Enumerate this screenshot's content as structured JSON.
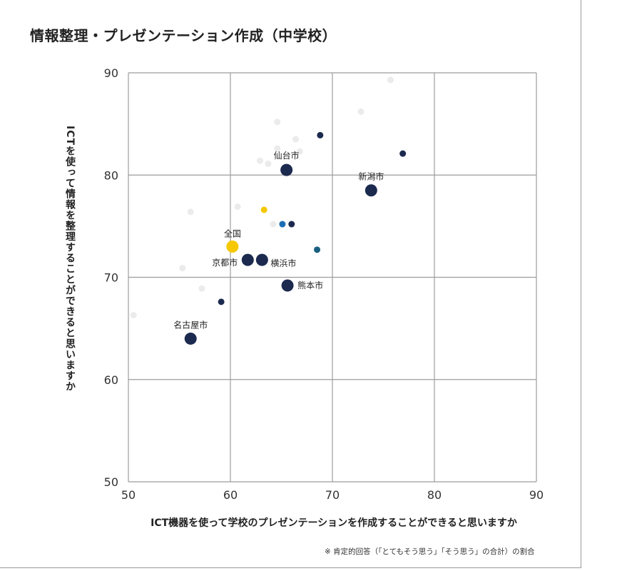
{
  "chart_data": {
    "type": "scatter",
    "title": "情報整理・プレゼンテーション作成（中学校）",
    "xlabel": "ICT機器を使って学校のプレゼンテーションを作成することができると思いますか",
    "ylabel": "ICTを使って情報を整理することができると思いますか",
    "note": "※ 肯定的回答（「とてもそう思う」「そう思う」の合計）の割合",
    "xlim": [
      50,
      90
    ],
    "ylim": [
      50,
      90
    ],
    "xticks": [
      50,
      60,
      70,
      80,
      90
    ],
    "yticks": [
      50,
      60,
      70,
      80,
      90
    ],
    "grid": true,
    "colors": {
      "navy": "#1b2a4e",
      "yellow": "#f5c800",
      "blue": "#1a6fb5",
      "teal": "#1a5f80",
      "gray": "#ebebeb"
    },
    "points": [
      {
        "x": 75.7,
        "y": 89.3,
        "color": "gray",
        "large": false
      },
      {
        "x": 72.8,
        "y": 86.2,
        "color": "gray",
        "large": false
      },
      {
        "x": 64.6,
        "y": 85.2,
        "color": "gray",
        "large": false
      },
      {
        "x": 66.4,
        "y": 83.5,
        "color": "gray",
        "large": false
      },
      {
        "x": 64.6,
        "y": 82.6,
        "color": "gray",
        "large": false
      },
      {
        "x": 66.8,
        "y": 82.3,
        "color": "gray",
        "large": false
      },
      {
        "x": 62.9,
        "y": 81.4,
        "color": "gray",
        "large": false
      },
      {
        "x": 63.7,
        "y": 81.1,
        "color": "gray",
        "large": false
      },
      {
        "x": 56.1,
        "y": 76.4,
        "color": "gray",
        "large": false
      },
      {
        "x": 60.7,
        "y": 76.9,
        "color": "gray",
        "large": false
      },
      {
        "x": 64.2,
        "y": 75.2,
        "color": "gray",
        "large": false
      },
      {
        "x": 55.3,
        "y": 70.9,
        "color": "gray",
        "large": false
      },
      {
        "x": 57.2,
        "y": 68.9,
        "color": "gray",
        "large": false
      },
      {
        "x": 50.5,
        "y": 66.3,
        "color": "gray",
        "large": false
      },
      {
        "x": 68.8,
        "y": 83.9,
        "color": "navy",
        "large": false
      },
      {
        "x": 76.9,
        "y": 82.1,
        "color": "navy",
        "large": false
      },
      {
        "x": 66.0,
        "y": 75.2,
        "color": "navy",
        "large": false
      },
      {
        "x": 59.1,
        "y": 67.6,
        "color": "navy",
        "large": false
      },
      {
        "x": 63.3,
        "y": 76.6,
        "color": "yellow",
        "large": false
      },
      {
        "x": 65.1,
        "y": 75.2,
        "color": "blue",
        "large": false
      },
      {
        "x": 68.5,
        "y": 72.7,
        "color": "teal",
        "large": false
      },
      {
        "x": 65.5,
        "y": 80.5,
        "color": "navy",
        "large": true,
        "label": "仙台市"
      },
      {
        "x": 73.8,
        "y": 78.5,
        "color": "navy",
        "large": true,
        "label": "新潟市"
      },
      {
        "x": 60.2,
        "y": 73.0,
        "color": "yellow",
        "large": true,
        "label": "全国"
      },
      {
        "x": 61.7,
        "y": 71.7,
        "color": "navy",
        "large": true,
        "label": "京都市"
      },
      {
        "x": 63.1,
        "y": 71.7,
        "color": "navy",
        "large": true,
        "label": "横浜市"
      },
      {
        "x": 65.6,
        "y": 69.2,
        "color": "navy",
        "large": true,
        "label": "熊本市"
      },
      {
        "x": 56.1,
        "y": 64.0,
        "color": "navy",
        "large": true,
        "label": "名古屋市"
      }
    ]
  }
}
